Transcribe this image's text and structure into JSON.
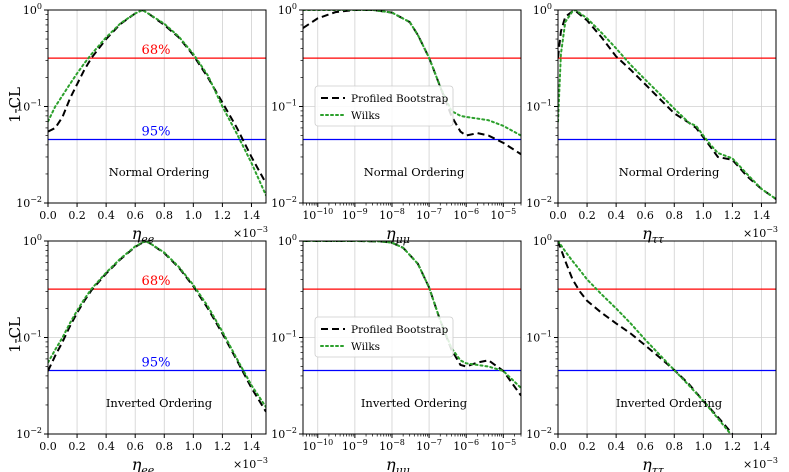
{
  "figure": {
    "ylabel": "1-CL",
    "xlabels": [
      "η_ee",
      "η_μμ",
      "η_ττ"
    ],
    "row_annotations": [
      "Normal Ordering",
      "Inverted Ordering"
    ],
    "level_labels": {
      "cl68": "68%",
      "cl95": "95%"
    },
    "offset_text": "×10⁻³",
    "legend": {
      "bootstrap": "Profiled Bootstrap",
      "wilks": "Wilks"
    }
  },
  "colors": {
    "bootstrap": "#000000",
    "wilks": "#2ca02c",
    "cl68": "#ff0000",
    "cl95": "#0000ff",
    "grid": "#d0d0d0",
    "annotation_68": "#ff0000",
    "annotation_95": "#0000ff"
  },
  "chart_data": [
    {
      "id": "panel-normal-ee",
      "type": "line",
      "title": "",
      "annotation": "Normal Ordering",
      "xlabel": "η_ee",
      "xscale": "linear",
      "xlim": [
        0,
        0.0015
      ],
      "xticks": [
        0,
        0.0002,
        0.0004,
        0.0006,
        0.0008,
        0.001,
        0.0012,
        0.0014
      ],
      "xtick_labels": [
        "0.0",
        "0.2",
        "0.4",
        "0.6",
        "0.8",
        "1.0",
        "1.2",
        "1.4"
      ],
      "x_offset_label": "×10⁻³",
      "yscale": "log",
      "ylim": [
        0.01,
        1
      ],
      "ylabel": "1-CL",
      "grid": true,
      "hlines": [
        {
          "name": "68%",
          "y": 0.317,
          "color": "#ff0000"
        },
        {
          "name": "95%",
          "y": 0.0455,
          "color": "#0000ff"
        }
      ],
      "level_labels_shown": true,
      "legend_shown": false,
      "series": [
        {
          "name": "Profiled Bootstrap",
          "style": "dashed",
          "color": "#000000",
          "x": [
            0,
            5e-05,
            0.0001,
            0.00015,
            0.0002,
            0.00025,
            0.0003,
            0.0004,
            0.0005,
            0.0006,
            0.00065,
            0.0007,
            0.0008,
            0.0009,
            0.001,
            0.0011,
            0.0012,
            0.0013,
            0.0014,
            0.0015
          ],
          "y": [
            0.055,
            0.06,
            0.078,
            0.12,
            0.17,
            0.24,
            0.32,
            0.5,
            0.72,
            0.92,
            1.0,
            0.9,
            0.7,
            0.52,
            0.34,
            0.2,
            0.11,
            0.06,
            0.03,
            0.016
          ]
        },
        {
          "name": "Wilks",
          "style": "dotted",
          "color": "#2ca02c",
          "x": [
            0,
            5e-05,
            0.0001,
            0.00015,
            0.0002,
            0.00025,
            0.0003,
            0.0004,
            0.0005,
            0.0006,
            0.00065,
            0.0007,
            0.0008,
            0.0009,
            0.001,
            0.0011,
            0.0012,
            0.0013,
            0.0014,
            0.0015
          ],
          "y": [
            0.07,
            0.1,
            0.13,
            0.17,
            0.22,
            0.28,
            0.35,
            0.52,
            0.73,
            0.92,
            1.0,
            0.9,
            0.72,
            0.53,
            0.35,
            0.21,
            0.1,
            0.052,
            0.026,
            0.012
          ]
        }
      ]
    },
    {
      "id": "panel-normal-mumu",
      "type": "line",
      "title": "",
      "annotation": "Normal Ordering",
      "xlabel": "η_μμ",
      "xscale": "log",
      "xlim": [
        4e-11,
        3e-05
      ],
      "xticks": [
        1e-10,
        1e-09,
        1e-08,
        1e-07,
        1e-06,
        1e-05
      ],
      "xtick_labels": [
        "10⁻¹⁰",
        "10⁻⁹",
        "10⁻⁸",
        "10⁻⁷",
        "10⁻⁶",
        "10⁻⁵"
      ],
      "yscale": "log",
      "ylim": [
        0.01,
        1
      ],
      "grid": true,
      "hlines": [
        {
          "name": "68%",
          "y": 0.317,
          "color": "#ff0000"
        },
        {
          "name": "95%",
          "y": 0.0455,
          "color": "#0000ff"
        }
      ],
      "level_labels_shown": false,
      "legend_shown": true,
      "legend_loc": "center-left",
      "series": [
        {
          "name": "Profiled Bootstrap",
          "style": "dashed",
          "color": "#000000",
          "x": [
            4e-11,
            1e-10,
            3e-10,
            1e-09,
            3e-09,
            1e-08,
            3e-08,
            5e-08,
            1e-07,
            2e-07,
            4e-07,
            7e-07,
            1e-06,
            2e-06,
            4e-06,
            1e-05,
            3e-05
          ],
          "y": [
            0.65,
            0.82,
            0.95,
            1.0,
            1.0,
            0.94,
            0.75,
            0.55,
            0.32,
            0.16,
            0.08,
            0.055,
            0.05,
            0.053,
            0.05,
            0.042,
            0.032
          ]
        },
        {
          "name": "Wilks",
          "style": "dotted",
          "color": "#2ca02c",
          "x": [
            4e-11,
            1e-10,
            3e-10,
            1e-09,
            3e-09,
            1e-08,
            3e-08,
            5e-08,
            1e-07,
            2e-07,
            4e-07,
            7e-07,
            1e-06,
            2e-06,
            4e-06,
            1e-05,
            3e-05
          ],
          "y": [
            1.0,
            1.0,
            1.0,
            1.0,
            1.0,
            0.94,
            0.75,
            0.55,
            0.32,
            0.16,
            0.09,
            0.08,
            0.078,
            0.075,
            0.072,
            0.063,
            0.05
          ]
        }
      ]
    },
    {
      "id": "panel-normal-tautau",
      "type": "line",
      "title": "",
      "annotation": "Normal Ordering",
      "xlabel": "η_ττ",
      "xscale": "linear",
      "xlim": [
        0,
        0.0015
      ],
      "xticks": [
        0,
        0.0002,
        0.0004,
        0.0006,
        0.0008,
        0.001,
        0.0012,
        0.0014
      ],
      "xtick_labels": [
        "0.0",
        "0.2",
        "0.4",
        "0.6",
        "0.8",
        "1.0",
        "1.2",
        "1.4"
      ],
      "x_offset_label": "×10⁻³",
      "yscale": "log",
      "ylim": [
        0.01,
        1
      ],
      "grid": true,
      "hlines": [
        {
          "name": "68%",
          "y": 0.317,
          "color": "#ff0000"
        },
        {
          "name": "95%",
          "y": 0.0455,
          "color": "#0000ff"
        }
      ],
      "level_labels_shown": false,
      "legend_shown": false,
      "series": [
        {
          "name": "Profiled Bootstrap",
          "style": "dashed",
          "color": "#000000",
          "x": [
            0,
            2e-05,
            5e-05,
            0.0001,
            0.00012,
            0.0002,
            0.0003,
            0.0004,
            0.0005,
            0.0006,
            0.0007,
            0.0008,
            0.0009,
            0.00095,
            0.001,
            0.00105,
            0.0011,
            0.0012,
            0.0013,
            0.0014,
            0.0015
          ],
          "y": [
            0.32,
            0.6,
            0.85,
            0.97,
            0.98,
            0.78,
            0.52,
            0.33,
            0.24,
            0.17,
            0.12,
            0.085,
            0.068,
            0.06,
            0.048,
            0.038,
            0.03,
            0.028,
            0.019,
            0.014,
            0.011
          ]
        },
        {
          "name": "Wilks",
          "style": "dotted",
          "color": "#2ca02c",
          "x": [
            0,
            2e-05,
            5e-05,
            0.0001,
            0.00012,
            0.0002,
            0.0003,
            0.0004,
            0.0005,
            0.0006,
            0.0007,
            0.0008,
            0.0009,
            0.00095,
            0.001,
            0.00105,
            0.0011,
            0.0012,
            0.0013,
            0.0014,
            0.0015
          ],
          "y": [
            0.07,
            0.35,
            0.75,
            0.97,
            1.0,
            0.82,
            0.58,
            0.4,
            0.27,
            0.19,
            0.135,
            0.095,
            0.068,
            0.063,
            0.05,
            0.04,
            0.033,
            0.029,
            0.02,
            0.014,
            0.011
          ]
        }
      ]
    },
    {
      "id": "panel-inverted-ee",
      "type": "line",
      "title": "",
      "annotation": "Inverted Ordering",
      "xlabel": "η_ee",
      "xscale": "linear",
      "xlim": [
        0,
        0.0015
      ],
      "xticks": [
        0,
        0.0002,
        0.0004,
        0.0006,
        0.0008,
        0.001,
        0.0012,
        0.0014
      ],
      "xtick_labels": [
        "0.0",
        "0.2",
        "0.4",
        "0.6",
        "0.8",
        "1.0",
        "1.2",
        "1.4"
      ],
      "x_offset_label": "×10⁻³",
      "yscale": "log",
      "ylim": [
        0.01,
        1
      ],
      "ylabel": "1-CL",
      "grid": true,
      "hlines": [
        {
          "name": "68%",
          "y": 0.317,
          "color": "#ff0000"
        },
        {
          "name": "95%",
          "y": 0.0455,
          "color": "#0000ff"
        }
      ],
      "level_labels_shown": true,
      "legend_shown": false,
      "series": [
        {
          "name": "Profiled Bootstrap",
          "style": "dashed",
          "color": "#000000",
          "x": [
            0,
            5e-05,
            0.0001,
            0.00015,
            0.0002,
            0.00025,
            0.0003,
            0.0004,
            0.0005,
            0.0006,
            0.00067,
            0.0007,
            0.0008,
            0.0009,
            0.001,
            0.0011,
            0.0012,
            0.0013,
            0.0014,
            0.0015
          ],
          "y": [
            0.045,
            0.065,
            0.09,
            0.13,
            0.18,
            0.24,
            0.31,
            0.46,
            0.65,
            0.87,
            1.0,
            0.95,
            0.75,
            0.53,
            0.34,
            0.2,
            0.11,
            0.058,
            0.03,
            0.017
          ]
        },
        {
          "name": "Wilks",
          "style": "dotted",
          "color": "#2ca02c",
          "x": [
            0,
            5e-05,
            0.0001,
            0.00015,
            0.0002,
            0.00025,
            0.0003,
            0.0004,
            0.0005,
            0.0006,
            0.00067,
            0.0007,
            0.0008,
            0.0009,
            0.001,
            0.0011,
            0.0012,
            0.0013,
            0.0014,
            0.0015
          ],
          "y": [
            0.055,
            0.075,
            0.1,
            0.14,
            0.19,
            0.25,
            0.32,
            0.47,
            0.66,
            0.88,
            1.0,
            0.95,
            0.76,
            0.54,
            0.35,
            0.21,
            0.115,
            0.06,
            0.032,
            0.019
          ]
        }
      ]
    },
    {
      "id": "panel-inverted-mumu",
      "type": "line",
      "title": "",
      "annotation": "Inverted Ordering",
      "xlabel": "η_μμ",
      "xscale": "log",
      "xlim": [
        4e-11,
        3e-05
      ],
      "xticks": [
        1e-10,
        1e-09,
        1e-08,
        1e-07,
        1e-06,
        1e-05
      ],
      "xtick_labels": [
        "10⁻¹⁰",
        "10⁻⁹",
        "10⁻⁸",
        "10⁻⁷",
        "10⁻⁶",
        "10⁻⁵"
      ],
      "yscale": "log",
      "ylim": [
        0.01,
        1
      ],
      "grid": true,
      "hlines": [
        {
          "name": "68%",
          "y": 0.317,
          "color": "#ff0000"
        },
        {
          "name": "95%",
          "y": 0.0455,
          "color": "#0000ff"
        }
      ],
      "level_labels_shown": false,
      "legend_shown": true,
      "legend_loc": "center-left",
      "series": [
        {
          "name": "Profiled Bootstrap",
          "style": "dashed",
          "color": "#000000",
          "x": [
            4e-11,
            1e-10,
            1e-09,
            5e-09,
            1e-08,
            2e-08,
            5e-08,
            1e-07,
            2e-07,
            4e-07,
            7e-07,
            1e-06,
            2e-06,
            4e-06,
            1e-05,
            3e-05
          ],
          "y": [
            1.0,
            1.0,
            1.0,
            0.99,
            0.96,
            0.85,
            0.58,
            0.33,
            0.15,
            0.075,
            0.052,
            0.05,
            0.055,
            0.058,
            0.045,
            0.025
          ]
        },
        {
          "name": "Wilks",
          "style": "dotted",
          "color": "#2ca02c",
          "x": [
            4e-11,
            1e-10,
            1e-09,
            5e-09,
            1e-08,
            2e-08,
            5e-08,
            1e-07,
            2e-07,
            4e-07,
            7e-07,
            1e-06,
            2e-06,
            4e-06,
            1e-05,
            3e-05
          ],
          "y": [
            1.0,
            1.0,
            1.0,
            0.99,
            0.96,
            0.85,
            0.58,
            0.33,
            0.15,
            0.078,
            0.058,
            0.054,
            0.052,
            0.05,
            0.045,
            0.03
          ]
        }
      ]
    },
    {
      "id": "panel-inverted-tautau",
      "type": "line",
      "title": "",
      "annotation": "Inverted Ordering",
      "xlabel": "η_ττ",
      "xscale": "linear",
      "xlim": [
        0,
        0.0015
      ],
      "xticks": [
        0,
        0.0002,
        0.0004,
        0.0006,
        0.0008,
        0.001,
        0.0012,
        0.0014
      ],
      "xtick_labels": [
        "0.0",
        "0.2",
        "0.4",
        "0.6",
        "0.8",
        "1.0",
        "1.2",
        "1.4"
      ],
      "x_offset_label": "×10⁻³",
      "yscale": "log",
      "ylim": [
        0.01,
        1
      ],
      "grid": true,
      "hlines": [
        {
          "name": "68%",
          "y": 0.317,
          "color": "#ff0000"
        },
        {
          "name": "95%",
          "y": 0.0455,
          "color": "#0000ff"
        }
      ],
      "level_labels_shown": false,
      "legend_shown": false,
      "series": [
        {
          "name": "Profiled Bootstrap",
          "style": "dashed",
          "color": "#000000",
          "x": [
            0,
            5e-05,
            0.0001,
            0.00015,
            0.0002,
            0.0003,
            0.0004,
            0.0005,
            0.0006,
            0.0007,
            0.0008,
            0.0009,
            0.001,
            0.0011,
            0.0012
          ],
          "y": [
            1.0,
            0.62,
            0.4,
            0.3,
            0.24,
            0.18,
            0.14,
            0.11,
            0.083,
            0.062,
            0.046,
            0.033,
            0.022,
            0.015,
            0.01
          ]
        },
        {
          "name": "Wilks",
          "style": "dotted",
          "color": "#2ca02c",
          "x": [
            0,
            5e-05,
            0.0001,
            0.00015,
            0.0002,
            0.0003,
            0.0004,
            0.0005,
            0.0006,
            0.0007,
            0.0008,
            0.0009,
            0.001,
            0.0011,
            0.0012
          ],
          "y": [
            1.0,
            0.78,
            0.62,
            0.5,
            0.4,
            0.28,
            0.2,
            0.14,
            0.095,
            0.066,
            0.046,
            0.032,
            0.022,
            0.0145,
            0.0095
          ]
        }
      ]
    }
  ]
}
